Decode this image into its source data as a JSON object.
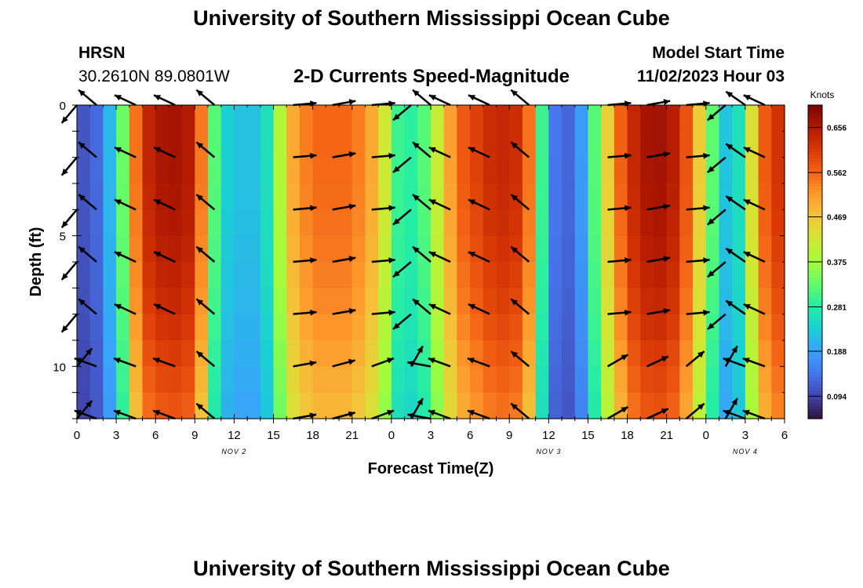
{
  "header": {
    "title": "University of Southern Mississippi Ocean Cube",
    "station": "HRSN",
    "coords": "30.2610N  89.0801W",
    "product": "2-D Currents Speed-Magnitude",
    "model_start_label": "Model Start Time",
    "model_start_value": "11/02/2023 Hour 03"
  },
  "footer": {
    "title": "University of Southern Mississippi Ocean Cube"
  },
  "chart_data": {
    "type": "heatmap",
    "title": "2-D Currents Speed-Magnitude",
    "xlabel": "Forecast Time(Z)",
    "ylabel": "Depth (ft)",
    "x_range_hours": [
      0,
      54
    ],
    "y_range_ft": [
      0,
      12
    ],
    "x_tick_labels": [
      "0",
      "3",
      "6",
      "9",
      "12",
      "15",
      "18",
      "21",
      "0",
      "3",
      "6",
      "9",
      "12",
      "15",
      "18",
      "21",
      "0",
      "3",
      "6"
    ],
    "y_ticks": [
      0,
      5,
      10
    ],
    "date_labels": [
      {
        "label": "NOV 2",
        "hour": 12
      },
      {
        "label": "NOV 3",
        "hour": 36
      },
      {
        "label": "NOV 4",
        "hour": 51
      }
    ],
    "colorbar": {
      "label": "Knots",
      "ticks": [
        "0.094",
        "0.188",
        "0.281",
        "0.375",
        "0.469",
        "0.562",
        "0.656"
      ],
      "range": [
        0.047,
        0.703
      ],
      "colors": [
        "#30123b",
        "#4145ab",
        "#4675ed",
        "#39a2fc",
        "#1bcfd4",
        "#24eca6",
        "#61fc6c",
        "#a4fc3b",
        "#d1e834",
        "#f3c63a",
        "#fe9b2d",
        "#f36315",
        "#d93806",
        "#b11901",
        "#7a0403"
      ]
    },
    "speed_profile_hours": [
      0,
      1.5,
      3,
      4,
      4.5,
      5,
      6,
      8,
      9,
      10,
      10.5,
      11,
      12,
      14,
      15,
      16,
      18,
      21,
      23,
      24.5,
      26,
      27,
      29,
      32,
      34,
      35,
      35.5,
      36,
      38,
      39,
      40,
      42,
      44,
      46,
      47,
      48,
      49,
      50,
      51,
      52,
      54
    ],
    "speed_profile_knots": [
      0.1,
      0.13,
      0.25,
      0.42,
      0.55,
      0.62,
      0.66,
      0.67,
      0.64,
      0.45,
      0.32,
      0.25,
      0.22,
      0.22,
      0.3,
      0.48,
      0.56,
      0.56,
      0.48,
      0.3,
      0.28,
      0.36,
      0.56,
      0.64,
      0.62,
      0.48,
      0.3,
      0.15,
      0.12,
      0.24,
      0.4,
      0.62,
      0.68,
      0.64,
      0.52,
      0.4,
      0.25,
      0.2,
      0.32,
      0.55,
      0.64
    ],
    "depth_rows_ft": [
      0,
      2,
      4,
      6,
      8,
      10,
      12
    ],
    "depth_speed_factor": [
      1.0,
      1.0,
      0.99,
      0.97,
      0.94,
      0.9,
      0.86
    ],
    "vector_hours": [
      0,
      1.5,
      4.5,
      7.5,
      10.5,
      16.5,
      19.5,
      22.5,
      25.5,
      27,
      28.5,
      31.5,
      34.5,
      40.5,
      43.5,
      46.5,
      49.5,
      51,
      52.5
    ],
    "vector_angles_deg": [
      -130,
      140,
      155,
      155,
      140,
      5,
      10,
      5,
      -140,
      140,
      155,
      155,
      140,
      5,
      10,
      5,
      -140,
      145,
      155
    ],
    "vector_angles_deep_deg": [
      50,
      160,
      160,
      160,
      140,
      10,
      15,
      20,
      60,
      170,
      160,
      160,
      140,
      30,
      25,
      40,
      60,
      160,
      160
    ]
  }
}
